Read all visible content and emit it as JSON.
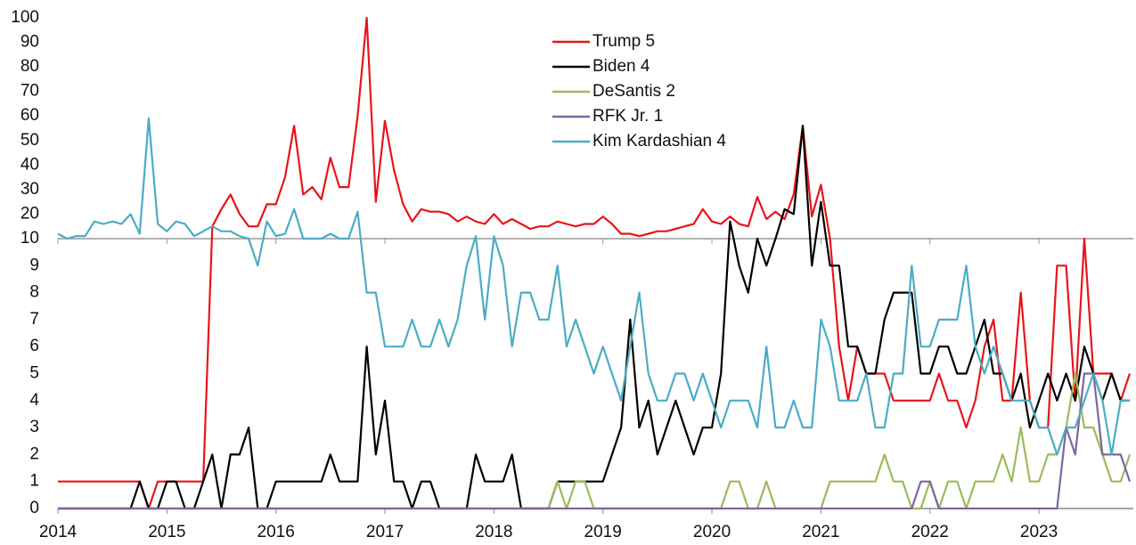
{
  "chart_data": {
    "type": "line",
    "categories": [
      "2014",
      null,
      null,
      null,
      null,
      null,
      null,
      null,
      null,
      null,
      null,
      null,
      "2015",
      null,
      null,
      null,
      null,
      null,
      null,
      null,
      null,
      null,
      null,
      null,
      "2016",
      null,
      null,
      null,
      null,
      null,
      null,
      null,
      null,
      null,
      null,
      null,
      "2017",
      null,
      null,
      null,
      null,
      null,
      null,
      null,
      null,
      null,
      null,
      null,
      "2018",
      null,
      null,
      null,
      null,
      null,
      null,
      null,
      null,
      null,
      null,
      null,
      "2019",
      null,
      null,
      null,
      null,
      null,
      null,
      null,
      null,
      null,
      null,
      null,
      "2020",
      null,
      null,
      null,
      null,
      null,
      null,
      null,
      null,
      null,
      null,
      null,
      "2021",
      null,
      null,
      null,
      null,
      null,
      null,
      null,
      null,
      null,
      null,
      null,
      "2022",
      null,
      null,
      null,
      null,
      null,
      null,
      null,
      null,
      null,
      null,
      null,
      "2023",
      null,
      null,
      null,
      null,
      null,
      null,
      null,
      null,
      null,
      null
    ],
    "ylim": [
      0,
      100
    ],
    "ybreak": 10,
    "yticks": [
      0,
      1,
      2,
      3,
      4,
      5,
      6,
      7,
      8,
      9,
      10,
      20,
      30,
      40,
      50,
      60,
      70,
      80,
      90,
      100
    ],
    "legend": "top-center",
    "series": [
      {
        "name": "Trump 5",
        "color": "#e8141a",
        "values": [
          1,
          1,
          1,
          1,
          1,
          1,
          1,
          1,
          1,
          1,
          0,
          1,
          1,
          1,
          1,
          1,
          1,
          15,
          22,
          28,
          20,
          15,
          15,
          24,
          24,
          35,
          56,
          28,
          31,
          26,
          43,
          31,
          31,
          60,
          100,
          25,
          58,
          38,
          24,
          17,
          22,
          21,
          21,
          20,
          17,
          19,
          17,
          16,
          20,
          16,
          18,
          16,
          14,
          15,
          15,
          17,
          16,
          15,
          16,
          16,
          19,
          16,
          12,
          12,
          11,
          12,
          13,
          13,
          14,
          15,
          16,
          22,
          17,
          16,
          19,
          16,
          15,
          27,
          18,
          21,
          18,
          28,
          56,
          19,
          32,
          10,
          6,
          4,
          6,
          5,
          5,
          5,
          4,
          4,
          4,
          4,
          4,
          5,
          4,
          4,
          3,
          4,
          6,
          7,
          4,
          4,
          8,
          4,
          3,
          3,
          9,
          9,
          4,
          10,
          5,
          5,
          5,
          4,
          5
        ]
      },
      {
        "name": "Biden 4",
        "color": "#000000",
        "values": [
          0,
          0,
          0,
          0,
          0,
          0,
          0,
          0,
          0,
          1,
          0,
          0,
          1,
          1,
          0,
          0,
          1,
          2,
          0,
          2,
          2,
          3,
          0,
          0,
          1,
          1,
          1,
          1,
          1,
          1,
          2,
          1,
          1,
          1,
          6,
          2,
          4,
          1,
          1,
          0,
          1,
          1,
          0,
          0,
          0,
          0,
          2,
          1,
          1,
          1,
          2,
          0,
          0,
          0,
          0,
          1,
          1,
          1,
          1,
          1,
          1,
          2,
          3,
          7,
          3,
          4,
          2,
          3,
          4,
          3,
          2,
          3,
          3,
          5,
          17,
          9,
          8,
          10,
          9,
          10,
          22,
          20,
          56,
          9,
          25,
          9,
          9,
          6,
          6,
          5,
          5,
          7,
          8,
          8,
          8,
          5,
          5,
          6,
          6,
          5,
          5,
          6,
          7,
          5,
          5,
          4,
          5,
          3,
          4,
          5,
          4,
          5,
          4,
          6,
          5,
          4,
          5,
          4,
          4
        ]
      },
      {
        "name": "DeSantis 2",
        "color": "#9bbb59",
        "values": [
          0,
          0,
          0,
          0,
          0,
          0,
          0,
          0,
          0,
          0,
          0,
          0,
          0,
          0,
          0,
          0,
          0,
          0,
          0,
          0,
          0,
          0,
          0,
          0,
          0,
          0,
          0,
          0,
          0,
          0,
          0,
          0,
          0,
          0,
          0,
          0,
          0,
          0,
          0,
          0,
          0,
          0,
          0,
          0,
          0,
          0,
          0,
          0,
          0,
          0,
          0,
          0,
          0,
          0,
          0,
          1,
          0,
          1,
          1,
          0,
          0,
          0,
          0,
          0,
          0,
          0,
          0,
          0,
          0,
          0,
          0,
          0,
          0,
          0,
          1,
          1,
          0,
          0,
          1,
          0,
          0,
          0,
          0,
          0,
          0,
          1,
          1,
          1,
          1,
          1,
          1,
          2,
          1,
          1,
          0,
          0,
          1,
          0,
          1,
          1,
          0,
          1,
          1,
          1,
          2,
          1,
          3,
          1,
          1,
          2,
          2,
          3,
          5,
          3,
          3,
          2,
          1,
          1,
          2
        ]
      },
      {
        "name": "RFK Jr. 1",
        "color": "#8064a2",
        "values": [
          0,
          0,
          0,
          0,
          0,
          0,
          0,
          0,
          0,
          0,
          0,
          0,
          0,
          0,
          0,
          0,
          0,
          0,
          0,
          0,
          0,
          0,
          0,
          0,
          0,
          0,
          0,
          0,
          0,
          0,
          0,
          0,
          0,
          0,
          0,
          0,
          0,
          0,
          0,
          0,
          0,
          0,
          0,
          0,
          0,
          0,
          0,
          0,
          0,
          0,
          0,
          0,
          0,
          0,
          0,
          0,
          0,
          0,
          0,
          0,
          0,
          0,
          0,
          0,
          0,
          0,
          0,
          0,
          0,
          0,
          0,
          0,
          0,
          0,
          0,
          0,
          0,
          0,
          0,
          0,
          0,
          0,
          0,
          0,
          0,
          0,
          0,
          0,
          0,
          0,
          0,
          0,
          0,
          0,
          0,
          1,
          1,
          0,
          0,
          0,
          0,
          0,
          0,
          0,
          0,
          0,
          0,
          0,
          0,
          0,
          0,
          3,
          2,
          5,
          5,
          2,
          2,
          2,
          1
        ]
      },
      {
        "name": "Kim Kardashian 4",
        "color": "#4bacc6",
        "values": [
          12,
          10,
          11,
          11,
          17,
          16,
          17,
          16,
          20,
          12,
          59,
          16,
          13,
          17,
          16,
          11,
          13,
          15,
          13,
          13,
          11,
          10,
          9,
          17,
          11,
          12,
          22,
          10,
          10,
          10,
          12,
          10,
          10,
          21,
          8,
          8,
          6,
          6,
          6,
          7,
          6,
          6,
          7,
          6,
          7,
          9,
          11,
          7,
          11,
          9,
          6,
          8,
          8,
          7,
          7,
          9,
          6,
          7,
          6,
          5,
          6,
          5,
          4,
          6,
          8,
          5,
          4,
          4,
          5,
          5,
          4,
          5,
          4,
          3,
          4,
          4,
          4,
          3,
          6,
          3,
          3,
          4,
          3,
          3,
          7,
          6,
          4,
          4,
          4,
          5,
          3,
          3,
          5,
          5,
          9,
          6,
          6,
          7,
          7,
          7,
          9,
          6,
          5,
          6,
          5,
          4,
          4,
          4,
          3,
          3,
          2,
          3,
          3,
          4,
          5,
          4,
          2,
          4,
          4
        ]
      }
    ]
  }
}
